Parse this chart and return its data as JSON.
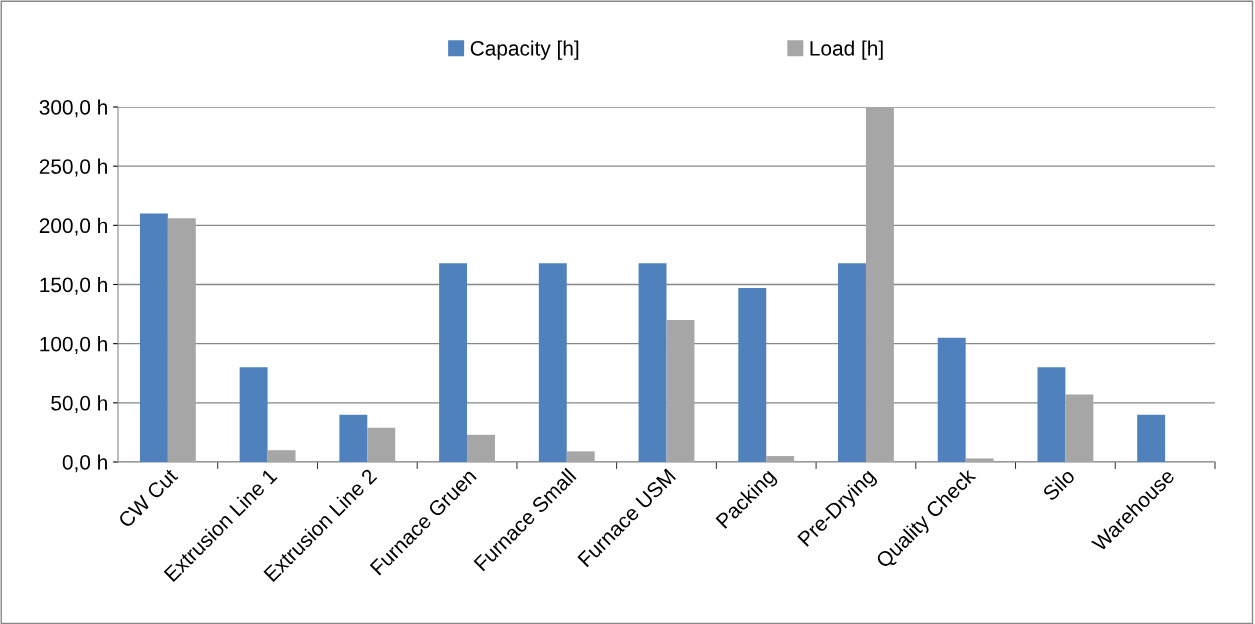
{
  "chart_data": {
    "type": "bar",
    "categories": [
      "CW Cut",
      "Extrusion Line 1",
      "Extrusion Line 2",
      "Furnace Gruen",
      "Furnace Small",
      "Furnace USM",
      "Packing",
      "Pre-Drying",
      "Quality Check",
      "Silo",
      "Warehouse"
    ],
    "series": [
      {
        "name": "Capacity [h]",
        "color": "#4f81bd",
        "values": [
          210,
          80,
          40,
          168,
          168,
          168,
          147,
          168,
          105,
          80,
          40
        ]
      },
      {
        "name": "Load [h]",
        "color": "#a6a6a6",
        "values": [
          206,
          10,
          29,
          23,
          9,
          120,
          5,
          300,
          3,
          57,
          0
        ]
      }
    ],
    "ylim": [
      0,
      300
    ],
    "yticks": [
      {
        "value": 0,
        "label": "0,0 h"
      },
      {
        "value": 50,
        "label": "50,0 h"
      },
      {
        "value": 100,
        "label": "100,0 h"
      },
      {
        "value": 150,
        "label": "150,0 h"
      },
      {
        "value": 200,
        "label": "200,0 h"
      },
      {
        "value": 250,
        "label": "250,0 h"
      },
      {
        "value": 300,
        "label": "300,0 h"
      }
    ],
    "grid": "y",
    "legend": "top"
  }
}
